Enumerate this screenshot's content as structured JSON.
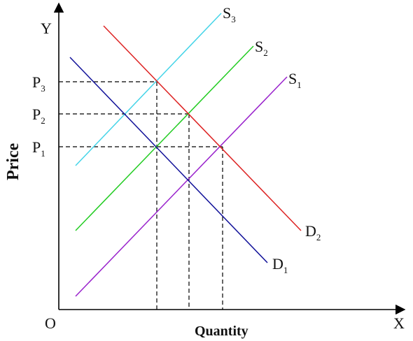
{
  "axes": {
    "y_label": "Y",
    "x_label": "X",
    "origin_label": "O",
    "y_title": "Price",
    "x_title": "Quantity",
    "color": "#000000"
  },
  "price_levels": [
    {
      "label": "P",
      "sub": "3"
    },
    {
      "label": "P",
      "sub": "2"
    },
    {
      "label": "P",
      "sub": "1"
    }
  ],
  "curves": [
    {
      "id": "S3",
      "label": "S",
      "sub": "3",
      "color": "#44d4e8"
    },
    {
      "id": "S2",
      "label": "S",
      "sub": "2",
      "color": "#22cc22"
    },
    {
      "id": "S1",
      "label": "S",
      "sub": "1",
      "color": "#9922cc"
    },
    {
      "id": "D2",
      "label": "D",
      "sub": "2",
      "color": "#dd2222"
    },
    {
      "id": "D1",
      "label": "D",
      "sub": "1",
      "color": "#111199"
    }
  ],
  "guide_color": "#000000"
}
